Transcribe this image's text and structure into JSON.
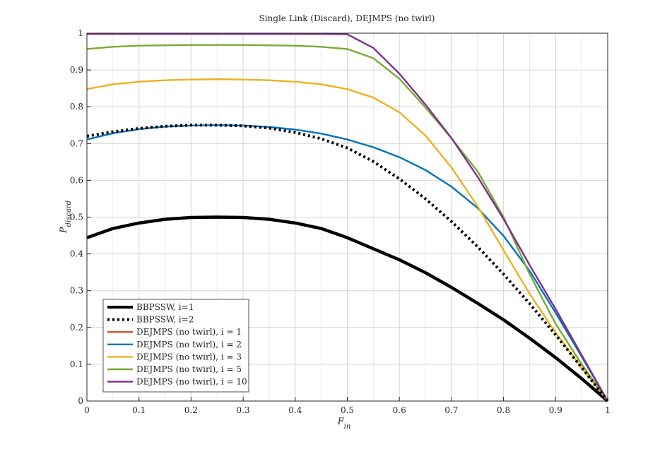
{
  "chart_data": {
    "type": "line",
    "title": "Single Link (Discard), DEJMPS (no twirl)",
    "xlabel": "F",
    "xlabel_sub": "in",
    "ylabel": "P",
    "ylabel_sub": "discard",
    "xlim": [
      0,
      1
    ],
    "ylim": [
      0,
      1
    ],
    "x_ticks": [
      0,
      0.1,
      0.2,
      0.3,
      0.4,
      0.5,
      0.6,
      0.7,
      0.8,
      0.9,
      1
    ],
    "x_tick_labels": [
      "0",
      "0.1",
      "0.2",
      "0.3",
      "0.4",
      "0.5",
      "0.6",
      "0.7",
      "0.8",
      "0.9",
      "1"
    ],
    "y_ticks": [
      0,
      0.1,
      0.2,
      0.3,
      0.4,
      0.5,
      0.6,
      0.7,
      0.8,
      0.9,
      1
    ],
    "y_tick_labels": [
      "0",
      "0.1",
      "0.2",
      "0.3",
      "0.4",
      "0.5",
      "0.6",
      "0.7",
      "0.8",
      "0.9",
      "1"
    ],
    "minor_grid": true,
    "grid": true,
    "legend_position": "bottom-left",
    "x": [
      0,
      0.05,
      0.1,
      0.15,
      0.2,
      0.25,
      0.3,
      0.35,
      0.4,
      0.45,
      0.5,
      0.55,
      0.6,
      0.65,
      0.7,
      0.75,
      0.8,
      0.85,
      0.9,
      0.95,
      1
    ],
    "series": [
      {
        "name": "BBPSSW, i=1",
        "color": "#000000",
        "style": "solid",
        "values": [
          0.444,
          0.469,
          0.484,
          0.494,
          0.499,
          0.5,
          0.499,
          0.494,
          0.484,
          0.469,
          0.444,
          0.414,
          0.384,
          0.349,
          0.309,
          0.266,
          0.221,
          0.171,
          0.118,
          0.061,
          0
        ]
      },
      {
        "name": "BBPSSW, i=2",
        "color": "#000000",
        "style": "dotted",
        "values": [
          0.72,
          0.732,
          0.741,
          0.747,
          0.75,
          0.75,
          0.748,
          0.742,
          0.73,
          0.713,
          0.688,
          0.651,
          0.604,
          0.55,
          0.488,
          0.42,
          0.345,
          0.265,
          0.18,
          0.091,
          0
        ]
      },
      {
        "name": "DEJMPS (no twirl), i = 1",
        "color": "#d95319",
        "style": "solid",
        "values": [
          0.444,
          0.469,
          0.484,
          0.494,
          0.499,
          0.5,
          0.499,
          0.494,
          0.484,
          0.469,
          0.444,
          0.414,
          0.384,
          0.349,
          0.309,
          0.266,
          0.221,
          0.171,
          0.118,
          0.061,
          0
        ]
      },
      {
        "name": "DEJMPS (no twirl), i = 2",
        "color": "#0072bd",
        "style": "solid",
        "values": [
          0.711,
          0.728,
          0.739,
          0.746,
          0.749,
          0.75,
          0.749,
          0.745,
          0.738,
          0.727,
          0.711,
          0.69,
          0.663,
          0.628,
          0.583,
          0.525,
          0.449,
          0.354,
          0.24,
          0.121,
          0
        ]
      },
      {
        "name": "DEJMPS (no twirl), i = 3",
        "color": "#edb120",
        "style": "solid",
        "values": [
          0.848,
          0.861,
          0.868,
          0.872,
          0.874,
          0.875,
          0.874,
          0.872,
          0.868,
          0.861,
          0.848,
          0.825,
          0.785,
          0.722,
          0.635,
          0.53,
          0.41,
          0.292,
          0.186,
          0.09,
          0
        ]
      },
      {
        "name": "DEJMPS (no twirl), i = 5",
        "color": "#77ac30",
        "style": "solid",
        "values": [
          0.957,
          0.963,
          0.966,
          0.967,
          0.968,
          0.968,
          0.968,
          0.967,
          0.966,
          0.963,
          0.957,
          0.932,
          0.876,
          0.798,
          0.714,
          0.625,
          0.5,
          0.345,
          0.21,
          0.1,
          0
        ]
      },
      {
        "name": "DEJMPS (no twirl), i = 10",
        "color": "#7e2f8e",
        "style": "solid",
        "values": [
          0.998,
          0.998,
          0.998,
          0.998,
          0.998,
          0.998,
          0.998,
          0.998,
          0.998,
          0.998,
          0.997,
          0.96,
          0.89,
          0.806,
          0.715,
          0.61,
          0.495,
          0.37,
          0.25,
          0.125,
          0
        ]
      }
    ]
  }
}
